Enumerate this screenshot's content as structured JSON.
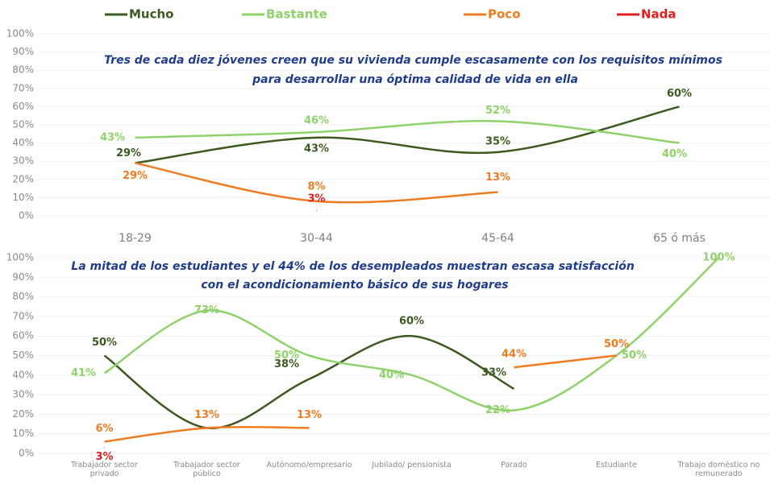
{
  "chart_data": [
    {
      "type": "line",
      "title": "Tres de cada diez jóvenes creen que su vivienda cumple escasamente con los requisitos mínimos para desarrollar una óptima calidad de vida en ella",
      "categories": [
        "18-29",
        "30-44",
        "45-64",
        "65 ó más"
      ],
      "series": [
        {
          "name": "Mucho",
          "color": "#3b5a1f",
          "values": [
            29,
            43,
            35,
            60
          ],
          "value_labels": [
            "29%",
            "43%",
            "35%",
            "60%"
          ]
        },
        {
          "name": "Bastante",
          "color": "#8fd16a",
          "values": [
            43,
            46,
            52,
            40
          ],
          "value_labels": [
            "43%",
            "46%",
            "52%",
            "40%"
          ]
        },
        {
          "name": "Poco",
          "color": "#f07c22",
          "values": [
            29,
            8,
            13,
            null
          ],
          "value_labels": [
            "29%",
            "8%",
            "13%",
            null
          ]
        },
        {
          "name": "Nada",
          "color": "#e02020",
          "values": [
            null,
            3,
            null,
            null
          ],
          "value_labels": [
            null,
            "3%",
            null,
            null
          ]
        }
      ],
      "ylim": [
        0,
        100
      ],
      "yticks": [
        {
          "value": 0,
          "label": "0%"
        },
        {
          "value": 10,
          "label": "10%"
        },
        {
          "value": 20,
          "label": "20%"
        },
        {
          "value": 30,
          "label": "30%"
        },
        {
          "value": 40,
          "label": "40%"
        },
        {
          "value": 50,
          "label": "50%"
        },
        {
          "value": 60,
          "label": "60%"
        },
        {
          "value": 70,
          "label": "70%"
        },
        {
          "value": 80,
          "label": "80%"
        },
        {
          "value": 90,
          "label": "90%"
        },
        {
          "value": 100,
          "label": "100%"
        }
      ],
      "grid": true
    },
    {
      "type": "line",
      "title": "La mitad de los estudiantes y el 44% de los desempleados muestran escasa satisfacción con el acondicionamiento básico de sus hogares",
      "categories": [
        "Trabajador sector privado",
        "Trabajador sector público",
        "Autónomo/empresario",
        "Jubilado/ pensionista",
        "Parado",
        "Estudiante",
        "Trabajo doméstico no remunerado"
      ],
      "series": [
        {
          "name": "Mucho",
          "color": "#3b5a1f",
          "values": [
            50,
            13,
            38,
            60,
            33,
            null,
            null
          ],
          "value_labels": [
            "50%",
            null,
            "38%",
            "60%",
            "33%",
            null,
            null
          ]
        },
        {
          "name": "Bastante",
          "color": "#8fd16a",
          "values": [
            41,
            73,
            50,
            40,
            22,
            50,
            100
          ],
          "value_labels": [
            "41%",
            "73%",
            "50%",
            "40%",
            "22%",
            "50%",
            "100%"
          ]
        },
        {
          "name": "Poco",
          "color": "#f07c22",
          "values": [
            6,
            13,
            13,
            null,
            44,
            50,
            null
          ],
          "value_labels": [
            "6%",
            "13%",
            "13%",
            null,
            "44%",
            "50%",
            null
          ]
        },
        {
          "name": "Nada",
          "color": "#e02020",
          "values": [
            3,
            null,
            null,
            null,
            null,
            null,
            null
          ],
          "value_labels": [
            "3%",
            null,
            null,
            null,
            null,
            null,
            null
          ]
        }
      ],
      "ylim": [
        0,
        100
      ],
      "yticks": [
        {
          "value": 0,
          "label": "0%"
        },
        {
          "value": 10,
          "label": "10%"
        },
        {
          "value": 20,
          "label": "20%"
        },
        {
          "value": 30,
          "label": "30%"
        },
        {
          "value": 40,
          "label": "40%"
        },
        {
          "value": 50,
          "label": "50%"
        },
        {
          "value": 60,
          "label": "60%"
        },
        {
          "value": 70,
          "label": "70%"
        },
        {
          "value": 80,
          "label": "80%"
        },
        {
          "value": 90,
          "label": "90%"
        },
        {
          "value": 100,
          "label": "100%"
        }
      ],
      "grid": true
    }
  ]
}
